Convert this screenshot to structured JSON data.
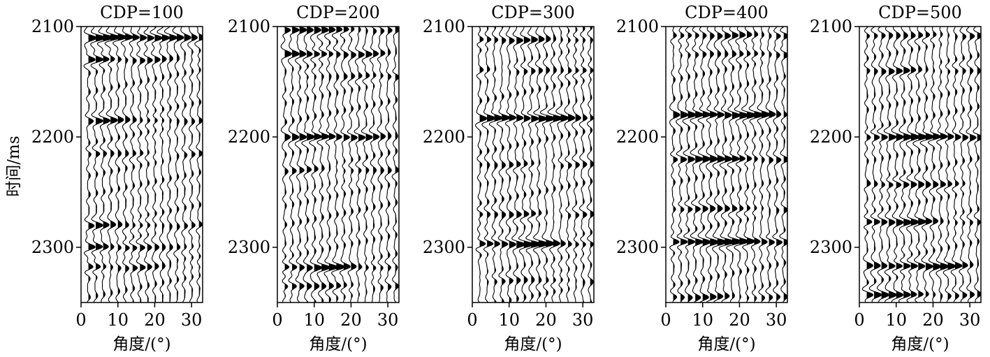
{
  "chart_data": {
    "type": "seismic-wiggle",
    "ylabel": "时间/ms",
    "xlabel": "角度/(°)",
    "xlim": [
      0,
      33
    ],
    "ylim": [
      2350,
      2100
    ],
    "x_ticks": [
      0,
      10,
      20,
      30
    ],
    "y_ticks": [
      2100,
      2200,
      2300
    ],
    "trace_angles": [
      2,
      4,
      6,
      8,
      10,
      12,
      14,
      16,
      18,
      20,
      22,
      24,
      26,
      28,
      30,
      32
    ],
    "panels": [
      {
        "title": "CDP=100",
        "events": [
          {
            "t": 2110,
            "amp": [
              0.9,
              1.0,
              1.0,
              1.0,
              1.0,
              1.0,
              1.0,
              1.0,
              0.9,
              0.9,
              0.8,
              0.8,
              0.7,
              0.7,
              0.6,
              0.6
            ],
            "shift": 0
          },
          {
            "t": 2130,
            "amp": [
              0.7,
              0.8,
              0.7,
              0.6,
              0.6,
              0.5,
              0.5,
              0.5,
              0.4,
              0.4,
              0.3,
              0.3,
              0.3,
              0.2,
              0.2,
              0.2
            ],
            "shift": 1
          },
          {
            "t": 2185,
            "amp": [
              0.6,
              0.7,
              0.6,
              0.6,
              0.5,
              0.5,
              0.5,
              0.4,
              0.4,
              0.4,
              0.3,
              0.3,
              0.3,
              0.3,
              0.2,
              0.2
            ],
            "shift": 0
          },
          {
            "t": 2215,
            "amp": [
              0.3,
              0.4,
              0.3,
              0.3,
              0.3,
              0.3,
              0.3,
              0.3,
              0.2,
              0.2,
              0.2,
              0.2,
              0.2,
              0.2,
              0.2,
              0.2
            ],
            "shift": 2
          },
          {
            "t": 2280,
            "amp": [
              0.5,
              0.6,
              0.5,
              0.5,
              0.5,
              0.5,
              0.4,
              0.4,
              0.4,
              0.3,
              0.3,
              0.3,
              0.2,
              0.2,
              0.2,
              0.2
            ],
            "shift": 0
          },
          {
            "t": 2300,
            "amp": [
              0.6,
              0.7,
              0.7,
              0.6,
              0.6,
              0.6,
              0.5,
              0.5,
              0.4,
              0.4,
              0.3,
              0.3,
              0.3,
              0.2,
              0.2,
              0.2
            ],
            "shift": 1
          },
          {
            "t": 2318,
            "amp": [
              0.5,
              0.6,
              0.5,
              0.5,
              0.5,
              0.4,
              0.4,
              0.4,
              0.3,
              0.3,
              0.3,
              0.2,
              0.2,
              0.2,
              0.2,
              0.2
            ],
            "shift": 0
          }
        ]
      },
      {
        "title": "CDP=200",
        "events": [
          {
            "t": 2103,
            "amp": [
              0.7,
              0.8,
              0.8,
              0.7,
              0.7,
              0.7,
              0.6,
              0.6,
              0.6,
              0.5,
              0.5,
              0.4,
              0.4,
              0.3,
              0.3,
              0.3
            ],
            "shift": 0
          },
          {
            "t": 2125,
            "amp": [
              0.7,
              0.8,
              0.8,
              0.7,
              0.7,
              0.7,
              0.6,
              0.6,
              0.6,
              0.5,
              0.5,
              0.5,
              0.4,
              0.4,
              0.3,
              0.3
            ],
            "shift": 1
          },
          {
            "t": 2145,
            "amp": [
              0.2,
              0.2,
              0.2,
              0.2,
              0.2,
              0.2,
              0.2,
              0.2,
              0.3,
              0.3,
              0.3,
              0.4,
              0.4,
              0.5,
              0.6,
              0.6
            ],
            "shift": 0
          },
          {
            "t": 2200,
            "amp": [
              0.6,
              0.7,
              0.7,
              0.8,
              0.8,
              0.9,
              0.9,
              0.9,
              0.9,
              0.8,
              0.7,
              0.6,
              0.5,
              0.4,
              0.3,
              0.3
            ],
            "shift": 0
          },
          {
            "t": 2230,
            "amp": [
              0.3,
              0.3,
              0.3,
              0.3,
              0.3,
              0.3,
              0.3,
              0.3,
              0.3,
              0.3,
              0.3,
              0.3,
              0.3,
              0.3,
              0.3,
              0.3
            ],
            "shift": 2
          },
          {
            "t": 2318,
            "amp": [
              0.6,
              0.7,
              0.7,
              0.7,
              0.8,
              0.8,
              0.8,
              0.8,
              0.7,
              0.7,
              0.6,
              0.5,
              0.4,
              0.3,
              0.3,
              0.2
            ],
            "shift": 0
          },
          {
            "t": 2335,
            "amp": [
              0.4,
              0.5,
              0.5,
              0.5,
              0.5,
              0.4,
              0.4,
              0.4,
              0.3,
              0.3,
              0.3,
              0.2,
              0.2,
              0.2,
              0.2,
              0.2
            ],
            "shift": 1
          }
        ]
      },
      {
        "title": "CDP=300",
        "events": [
          {
            "t": 2112,
            "amp": [
              0.5,
              0.6,
              0.6,
              0.6,
              0.6,
              0.6,
              0.5,
              0.5,
              0.5,
              0.5,
              0.4,
              0.4,
              0.4,
              0.4,
              0.3,
              0.3
            ],
            "shift": 0
          },
          {
            "t": 2140,
            "amp": [
              0.3,
              0.3,
              0.3,
              0.3,
              0.3,
              0.3,
              0.3,
              0.3,
              0.3,
              0.3,
              0.3,
              0.3,
              0.4,
              0.4,
              0.5,
              0.5
            ],
            "shift": 1
          },
          {
            "t": 2183,
            "amp": [
              0.7,
              0.8,
              0.8,
              0.9,
              0.9,
              1.0,
              1.0,
              1.0,
              1.0,
              1.0,
              0.9,
              0.8,
              0.7,
              0.6,
              0.5,
              0.4
            ],
            "shift": 0
          },
          {
            "t": 2225,
            "amp": [
              0.3,
              0.3,
              0.3,
              0.3,
              0.3,
              0.3,
              0.3,
              0.3,
              0.3,
              0.3,
              0.3,
              0.3,
              0.3,
              0.3,
              0.3,
              0.3
            ],
            "shift": 2
          },
          {
            "t": 2270,
            "amp": [
              0.4,
              0.4,
              0.4,
              0.4,
              0.4,
              0.4,
              0.4,
              0.4,
              0.3,
              0.3,
              0.3,
              0.3,
              0.3,
              0.3,
              0.3,
              0.3
            ],
            "shift": 0
          },
          {
            "t": 2297,
            "amp": [
              0.7,
              0.8,
              0.8,
              0.9,
              0.9,
              1.0,
              1.0,
              1.0,
              1.0,
              0.9,
              0.8,
              0.7,
              0.6,
              0.5,
              0.4,
              0.4
            ],
            "shift": 0
          },
          {
            "t": 2330,
            "amp": [
              0.3,
              0.3,
              0.3,
              0.3,
              0.3,
              0.3,
              0.3,
              0.3,
              0.3,
              0.3,
              0.3,
              0.3,
              0.3,
              0.3,
              0.3,
              0.3
            ],
            "shift": 1
          }
        ]
      },
      {
        "title": "CDP=400",
        "events": [
          {
            "t": 2108,
            "amp": [
              0.5,
              0.5,
              0.5,
              0.5,
              0.5,
              0.5,
              0.5,
              0.5,
              0.5,
              0.5,
              0.5,
              0.5,
              0.5,
              0.5,
              0.6,
              0.6
            ],
            "shift": 0
          },
          {
            "t": 2125,
            "amp": [
              0.3,
              0.3,
              0.3,
              0.3,
              0.3,
              0.3,
              0.3,
              0.3,
              0.4,
              0.4,
              0.4,
              0.5,
              0.5,
              0.5,
              0.5,
              0.5
            ],
            "shift": 1
          },
          {
            "t": 2180,
            "amp": [
              0.7,
              0.8,
              0.9,
              0.9,
              1.0,
              1.0,
              1.0,
              1.0,
              1.0,
              1.0,
              0.9,
              0.9,
              0.8,
              0.7,
              0.6,
              0.5
            ],
            "shift": 0
          },
          {
            "t": 2220,
            "amp": [
              0.6,
              0.7,
              0.7,
              0.8,
              0.8,
              0.8,
              0.8,
              0.8,
              0.8,
              0.7,
              0.7,
              0.6,
              0.5,
              0.5,
              0.4,
              0.4
            ],
            "shift": 0
          },
          {
            "t": 2265,
            "amp": [
              0.5,
              0.5,
              0.5,
              0.5,
              0.5,
              0.5,
              0.5,
              0.5,
              0.5,
              0.4,
              0.4,
              0.4,
              0.4,
              0.3,
              0.3,
              0.3
            ],
            "shift": 1
          },
          {
            "t": 2295,
            "amp": [
              0.8,
              0.9,
              0.9,
              1.0,
              1.0,
              1.0,
              1.0,
              1.0,
              1.0,
              1.0,
              1.0,
              0.9,
              0.9,
              0.8,
              0.7,
              0.6
            ],
            "shift": 0
          },
          {
            "t": 2345,
            "amp": [
              0.5,
              0.5,
              0.5,
              0.5,
              0.5,
              0.5,
              0.5,
              0.5,
              0.4,
              0.4,
              0.4,
              0.3,
              0.3,
              0.3,
              0.3,
              0.3
            ],
            "shift": 0
          }
        ]
      },
      {
        "title": "CDP=500",
        "events": [
          {
            "t": 2108,
            "amp": [
              0.4,
              0.4,
              0.4,
              0.4,
              0.4,
              0.4,
              0.4,
              0.4,
              0.4,
              0.4,
              0.4,
              0.4,
              0.4,
              0.4,
              0.4,
              0.4
            ],
            "shift": 0
          },
          {
            "t": 2140,
            "amp": [
              0.5,
              0.5,
              0.5,
              0.5,
              0.5,
              0.5,
              0.4,
              0.4,
              0.4,
              0.4,
              0.3,
              0.3,
              0.3,
              0.3,
              0.3,
              0.3
            ],
            "shift": 1
          },
          {
            "t": 2200,
            "amp": [
              0.6,
              0.7,
              0.7,
              0.8,
              0.8,
              0.9,
              0.9,
              0.9,
              0.9,
              0.9,
              0.9,
              0.9,
              0.9,
              0.8,
              0.7,
              0.6
            ],
            "shift": 0
          },
          {
            "t": 2243,
            "amp": [
              0.5,
              0.6,
              0.6,
              0.6,
              0.6,
              0.6,
              0.6,
              0.6,
              0.5,
              0.5,
              0.5,
              0.4,
              0.4,
              0.4,
              0.3,
              0.3
            ],
            "shift": 0
          },
          {
            "t": 2277,
            "amp": [
              0.7,
              0.8,
              0.8,
              0.8,
              0.8,
              0.8,
              0.7,
              0.7,
              0.6,
              0.6,
              0.5,
              0.4,
              0.4,
              0.3,
              0.3,
              0.3
            ],
            "shift": 1
          },
          {
            "t": 2317,
            "amp": [
              0.6,
              0.7,
              0.7,
              0.8,
              0.8,
              0.9,
              0.9,
              0.9,
              0.9,
              0.9,
              0.8,
              0.7,
              0.6,
              0.5,
              0.4,
              0.3
            ],
            "shift": 0
          },
          {
            "t": 2343,
            "amp": [
              0.7,
              0.8,
              0.8,
              0.8,
              0.7,
              0.7,
              0.6,
              0.6,
              0.5,
              0.5,
              0.4,
              0.4,
              0.3,
              0.3,
              0.3,
              0.3
            ],
            "shift": 1
          }
        ]
      }
    ]
  }
}
